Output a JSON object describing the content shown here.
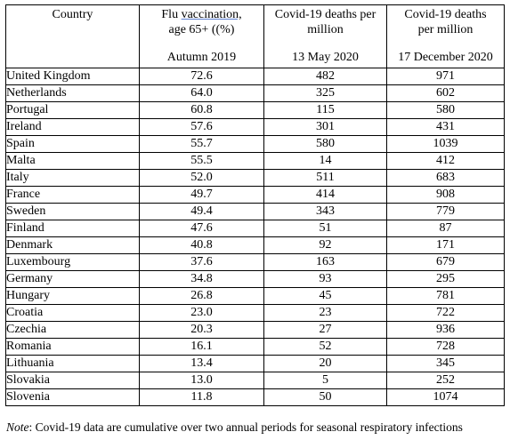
{
  "headers": {
    "country": "Country",
    "flu_line1a": "Flu ",
    "flu_line1b": "vaccination,",
    "flu_line2": "age 65+ ((%)",
    "flu_date": "Autumn 2019",
    "covid1_line1": "Covid-19 deaths per",
    "covid1_line2": "million",
    "covid1_date": "13 May 2020",
    "covid2_line1": "Covid-19 deaths",
    "covid2_line2": "per million",
    "covid2_date": "17 December 2020"
  },
  "rows": [
    {
      "country": "United Kingdom",
      "flu": "72.6",
      "deaths_may": "482",
      "deaths_dec": "971"
    },
    {
      "country": "Netherlands",
      "flu": "64.0",
      "deaths_may": "325",
      "deaths_dec": "602"
    },
    {
      "country": "Portugal",
      "flu": "60.8",
      "deaths_may": "115",
      "deaths_dec": "580"
    },
    {
      "country": "Ireland",
      "flu": "57.6",
      "deaths_may": "301",
      "deaths_dec": "431"
    },
    {
      "country": "Spain",
      "flu": "55.7",
      "deaths_may": "580",
      "deaths_dec": "1039"
    },
    {
      "country": "Malta",
      "flu": "55.5",
      "deaths_may": "14",
      "deaths_dec": "412"
    },
    {
      "country": "Italy",
      "flu": "52.0",
      "deaths_may": "511",
      "deaths_dec": "683"
    },
    {
      "country": "France",
      "flu": "49.7",
      "deaths_may": "414",
      "deaths_dec": "908"
    },
    {
      "country": "Sweden",
      "flu": "49.4",
      "deaths_may": "343",
      "deaths_dec": "779"
    },
    {
      "country": "Finland",
      "flu": "47.6",
      "deaths_may": "51",
      "deaths_dec": "87"
    },
    {
      "country": "Denmark",
      "flu": "40.8",
      "deaths_may": "92",
      "deaths_dec": "171"
    },
    {
      "country": "Luxembourg",
      "flu": "37.6",
      "deaths_may": "163",
      "deaths_dec": "679"
    },
    {
      "country": "Germany",
      "flu": "34.8",
      "deaths_may": "93",
      "deaths_dec": "295"
    },
    {
      "country": "Hungary",
      "flu": "26.8",
      "deaths_may": "45",
      "deaths_dec": "781"
    },
    {
      "country": "Croatia",
      "flu": "23.0",
      "deaths_may": "23",
      "deaths_dec": "722"
    },
    {
      "country": "Czechia",
      "flu": "20.3",
      "deaths_may": "27",
      "deaths_dec": "936"
    },
    {
      "country": "Romania",
      "flu": "16.1",
      "deaths_may": "52",
      "deaths_dec": "728"
    },
    {
      "country": "Lithuania",
      "flu": "13.4",
      "deaths_may": "20",
      "deaths_dec": "345"
    },
    {
      "country": "Slovakia",
      "flu": "13.0",
      "deaths_may": "5",
      "deaths_dec": "252"
    },
    {
      "country": "Slovenia",
      "flu": "11.8",
      "deaths_may": "50",
      "deaths_dec": "1074"
    }
  ],
  "note": {
    "label": "Note",
    "text": ": Covid-19 data are cumulative over two annual periods for seasonal respiratory infections"
  }
}
